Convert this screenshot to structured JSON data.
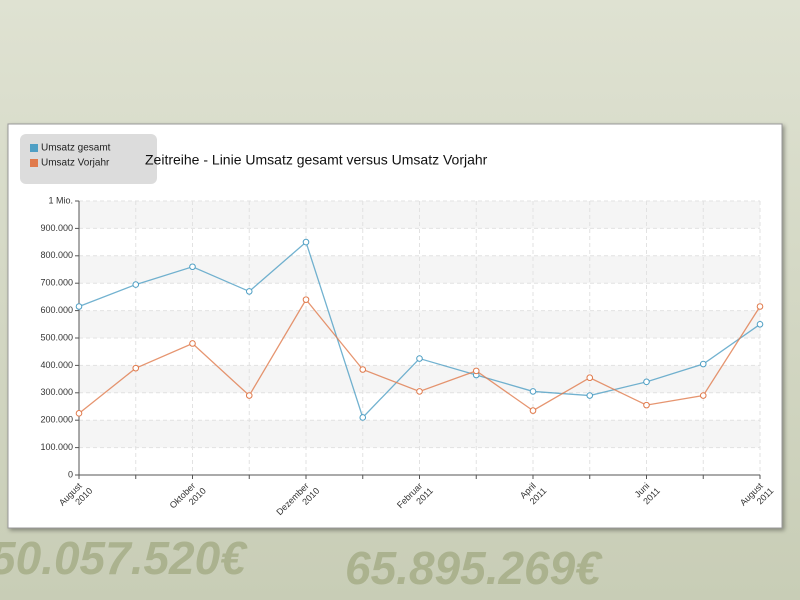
{
  "background": {
    "texts": [
      "50.057.520€",
      "65.895.269€"
    ]
  },
  "chart_data": {
    "type": "line",
    "title": "Zeitreihe - Linie Umsatz gesamt versus Umsatz Vorjahr",
    "categories": [
      "August 2010",
      null,
      "Oktober 2010",
      null,
      "Dezember 2010",
      null,
      "Februar 2011",
      null,
      "April 2011",
      null,
      "Juni 2011",
      null,
      "August 2011"
    ],
    "series": [
      {
        "name": "Umsatz gesamt",
        "color": "#4f9fc4",
        "values": [
          615000,
          695000,
          760000,
          670000,
          850000,
          210000,
          425000,
          365000,
          305000,
          290000,
          340000,
          405000,
          550000
        ]
      },
      {
        "name": "Umsatz Vorjahr",
        "color": "#e07a4c",
        "values": [
          225000,
          390000,
          480000,
          290000,
          640000,
          385000,
          305000,
          380000,
          235000,
          355000,
          255000,
          290000,
          615000
        ]
      }
    ],
    "ylim": [
      0,
      1000000
    ],
    "yticks": [
      0,
      {
        "value": 100000,
        "label": "100.000"
      },
      {
        "value": 200000,
        "label": "200.000"
      },
      {
        "value": 300000,
        "label": "300.000"
      },
      {
        "value": 400000,
        "label": "400.000"
      },
      {
        "value": 500000,
        "label": "500.000"
      },
      {
        "value": 600000,
        "label": "600.000"
      },
      {
        "value": 700000,
        "label": "700.000"
      },
      {
        "value": 800000,
        "label": "800.000"
      },
      {
        "value": 900000,
        "label": "900.000"
      },
      {
        "value": 1000000,
        "label": "1 Mio."
      }
    ],
    "grid": true,
    "legend": "top-left"
  }
}
